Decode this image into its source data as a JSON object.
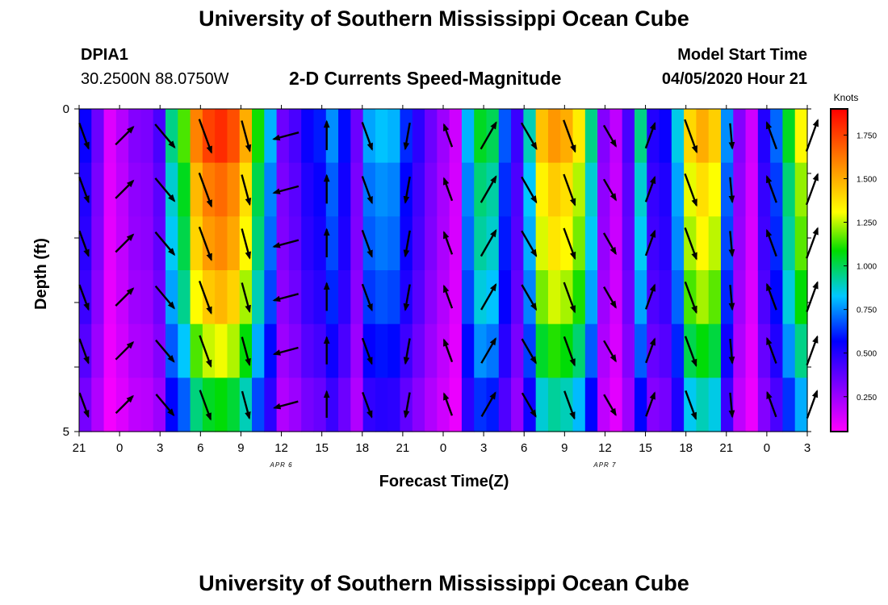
{
  "header": {
    "title": "University of Southern Mississippi Ocean Cube",
    "station": "DPIA1",
    "location": "30.2500N 88.0750W",
    "subtitle": "2-D Currents Speed-Magnitude",
    "model_start_label": "Model Start Time",
    "model_start_value": "04/05/2020 Hour 21"
  },
  "footer": {
    "title": "University of Southern Mississippi Ocean Cube"
  },
  "chart_data": {
    "type": "heatmap",
    "title": "2-D Currents Speed-Magnitude",
    "xlabel": "Forecast Time(Z)",
    "ylabel": "Depth (ft)",
    "x_ticks": [
      "21",
      "0",
      "3",
      "6",
      "9",
      "12",
      "15",
      "18",
      "21",
      "0",
      "3",
      "6",
      "9",
      "12",
      "15",
      "18",
      "21",
      "0",
      "3"
    ],
    "date_labels": [
      {
        "label": "APR 6",
        "tick_index": 5
      },
      {
        "label": "APR 7",
        "tick_index": 13
      }
    ],
    "y_ticks": [
      "0",
      "5"
    ],
    "ylim": [
      0,
      5
    ],
    "colorbar": {
      "unit": "Knots",
      "ticks": [
        "0.250",
        "0.500",
        "0.750",
        "1.000",
        "1.250",
        "1.500",
        "1.750"
      ],
      "range": [
        0.05,
        1.9
      ]
    },
    "columns_speed_knots": [
      0.55,
      0.35,
      0.12,
      0.2,
      0.3,
      0.32,
      0.42,
      0.95,
      1.15,
      1.6,
      1.75,
      1.8,
      1.72,
      1.5,
      1.1,
      0.8,
      0.35,
      0.42,
      0.55,
      0.6,
      0.75,
      0.58,
      0.35,
      0.78,
      0.82,
      0.8,
      0.62,
      0.48,
      0.35,
      0.25,
      0.15,
      0.8,
      1.05,
      1.0,
      0.68,
      0.45,
      0.9,
      1.45,
      1.55,
      1.5,
      1.35,
      0.95,
      0.3,
      0.18,
      0.42,
      0.95,
      0.5,
      0.55,
      0.85,
      1.4,
      1.5,
      1.42,
      0.75,
      0.3,
      0.15,
      0.5,
      0.7,
      1.05,
      1.32
    ],
    "depth_factor": [
      1.0,
      0.92,
      0.88,
      0.82,
      0.72,
      0.6
    ],
    "vector_columns_tick_index": [
      0,
      1,
      2,
      3,
      4,
      5,
      6,
      7,
      8,
      9,
      10,
      11,
      12,
      13,
      14,
      15,
      16,
      17,
      18
    ],
    "vector_directions_deg": [
      160,
      45,
      140,
      160,
      165,
      255,
      0,
      160,
      190,
      340,
      30,
      150,
      160,
      150,
      20,
      160,
      175,
      340,
      20
    ]
  }
}
